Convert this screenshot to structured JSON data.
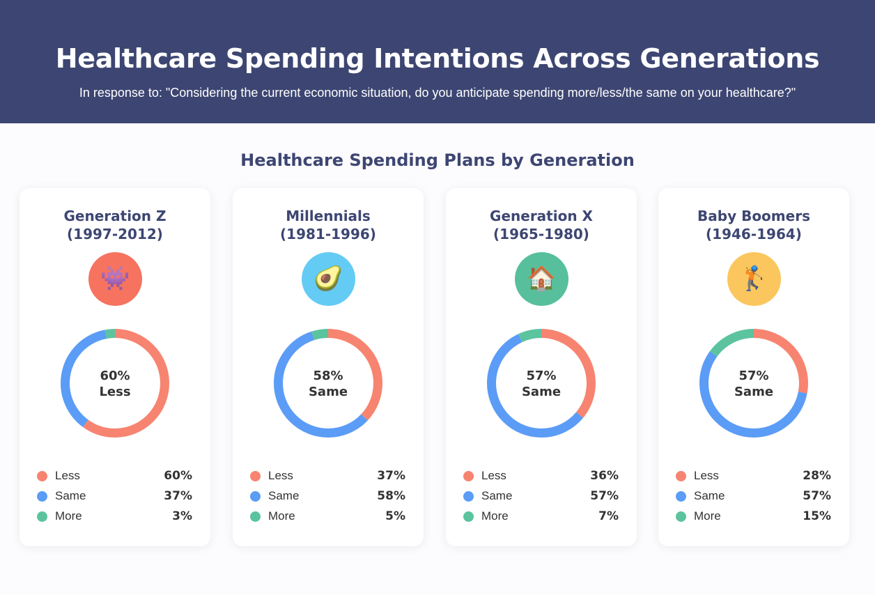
{
  "header": {
    "title": "Healthcare Spending Intentions Across Generations",
    "subtitle": "In response to: \"Considering the current economic situation, do you anticipate spending more/less/the same on your healthcare?\""
  },
  "section_title": "Healthcare Spending Plans by Generation",
  "colors": {
    "less": "#f78470",
    "same": "#5b9cf6",
    "more": "#5bc49f",
    "track": "#f1eff3"
  },
  "chart_data": {
    "type": "pie",
    "variant": "donut",
    "title": "Healthcare Spending Plans by Generation",
    "categories": [
      "Less",
      "Same",
      "More"
    ],
    "series": [
      {
        "name": "Generation Z",
        "years": "(1997-2012)",
        "icon": "alien-monster-icon",
        "icon_glyph": "👾",
        "icon_bg": "#f5735f",
        "values": [
          60,
          37,
          3
        ],
        "center_value": "60%",
        "center_label": "Less"
      },
      {
        "name": "Millennials",
        "years": "(1981-1996)",
        "icon": "avocado-icon",
        "icon_glyph": "🥑",
        "icon_bg": "#64cbf5",
        "values": [
          37,
          58,
          5
        ],
        "center_value": "58%",
        "center_label": "Same"
      },
      {
        "name": "Generation X",
        "years": "(1965-1980)",
        "icon": "house-icon",
        "icon_glyph": "🏠",
        "icon_bg": "#57bf9b",
        "values": [
          36,
          57,
          7
        ],
        "center_value": "57%",
        "center_label": "Same"
      },
      {
        "name": "Baby Boomers",
        "years": "(1946-1964)",
        "icon": "golfer-icon",
        "icon_glyph": "🏌️",
        "icon_bg": "#fbc65e",
        "values": [
          28,
          57,
          15
        ],
        "center_value": "57%",
        "center_label": "Same"
      }
    ]
  }
}
